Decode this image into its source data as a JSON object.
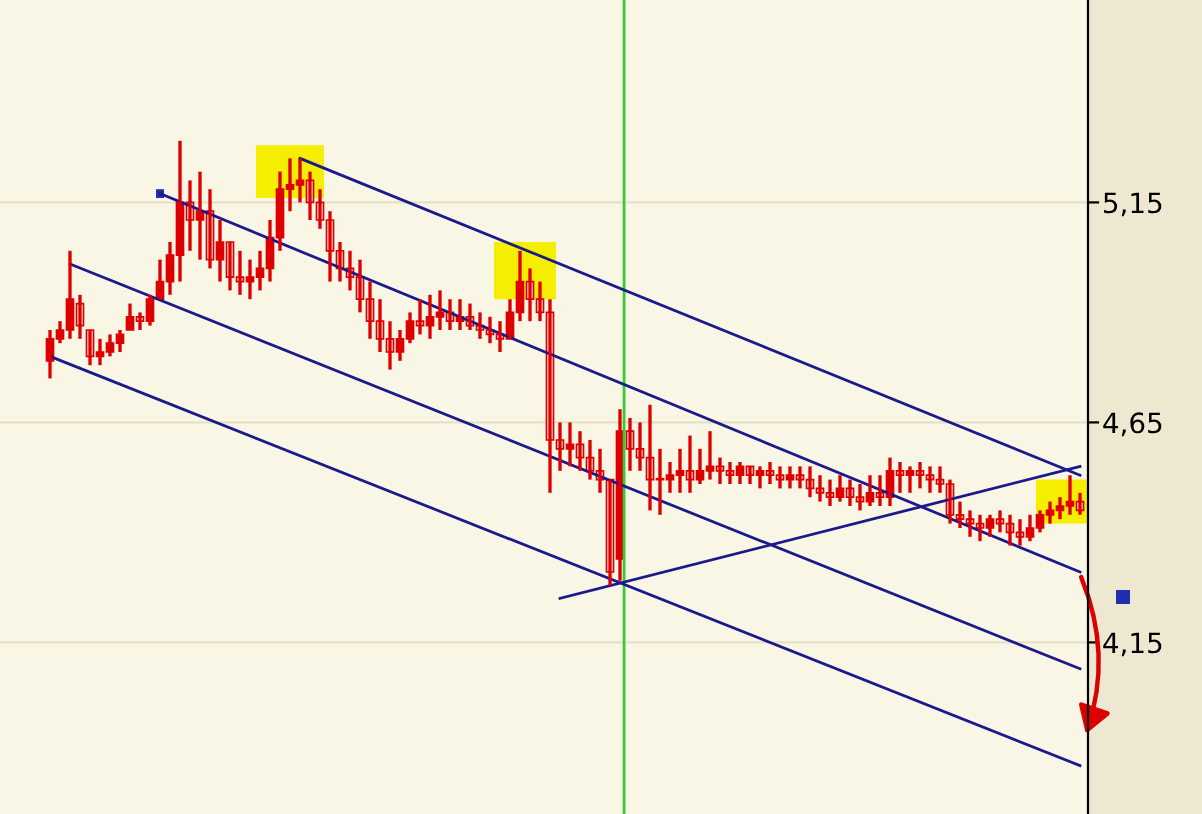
{
  "chart_data": {
    "type": "candlestick",
    "color": "#dd0000",
    "categories": [
      null,
      null,
      null,
      null,
      null,
      null,
      null,
      null,
      null,
      null,
      null,
      null,
      null,
      null,
      null,
      null,
      null,
      null,
      null,
      null,
      null,
      null,
      null,
      null,
      null,
      null,
      null,
      null,
      null,
      null,
      null,
      null,
      null,
      null,
      null,
      null,
      null,
      null,
      null,
      null,
      null,
      null,
      null,
      null,
      null,
      null,
      null,
      null,
      null,
      null,
      null,
      null,
      null,
      null,
      null,
      null,
      null,
      null,
      null,
      null,
      null,
      null,
      null,
      null,
      null,
      null,
      null,
      null,
      null,
      null,
      null,
      null,
      null,
      null,
      null,
      null,
      null,
      null,
      null,
      null,
      null,
      null,
      null,
      null,
      null,
      null,
      null,
      null,
      null,
      null,
      null,
      null,
      null,
      null,
      null,
      null,
      null,
      null,
      null,
      null,
      null,
      null,
      null,
      null
    ],
    "ohlc": [
      [
        4.79,
        4.86,
        4.75,
        4.84
      ],
      [
        4.84,
        4.88,
        4.83,
        4.86
      ],
      [
        4.86,
        5.04,
        4.84,
        4.93
      ],
      [
        4.92,
        4.94,
        4.84,
        4.87
      ],
      [
        4.86,
        4.86,
        4.78,
        4.8
      ],
      [
        4.8,
        4.84,
        4.78,
        4.81
      ],
      [
        4.81,
        4.85,
        4.8,
        4.83
      ],
      [
        4.83,
        4.86,
        4.81,
        4.85
      ],
      [
        4.86,
        4.92,
        4.86,
        4.89
      ],
      [
        4.89,
        4.9,
        4.86,
        4.88
      ],
      [
        4.88,
        4.94,
        4.87,
        4.93
      ],
      [
        4.93,
        5.02,
        4.93,
        4.97
      ],
      [
        4.97,
        5.06,
        4.94,
        5.03
      ],
      [
        5.03,
        5.29,
        4.97,
        5.15
      ],
      [
        5.15,
        5.2,
        5.04,
        5.11
      ],
      [
        5.11,
        5.22,
        5.02,
        5.13
      ],
      [
        5.13,
        5.18,
        5.0,
        5.02
      ],
      [
        5.02,
        5.11,
        4.97,
        5.06
      ],
      [
        5.06,
        5.06,
        4.95,
        4.98
      ],
      [
        4.98,
        5.04,
        4.94,
        4.97
      ],
      [
        4.97,
        5.02,
        4.93,
        4.98
      ],
      [
        4.98,
        5.04,
        4.95,
        5.0
      ],
      [
        5.0,
        5.11,
        4.97,
        5.07
      ],
      [
        5.07,
        5.22,
        5.04,
        5.18
      ],
      [
        5.18,
        5.25,
        5.13,
        5.19
      ],
      [
        5.19,
        5.25,
        5.15,
        5.2
      ],
      [
        5.2,
        5.22,
        5.11,
        5.15
      ],
      [
        5.15,
        5.18,
        5.09,
        5.11
      ],
      [
        5.11,
        5.13,
        4.97,
        5.04
      ],
      [
        5.04,
        5.06,
        4.97,
        5.0
      ],
      [
        5.0,
        5.04,
        4.95,
        4.98
      ],
      [
        4.98,
        5.02,
        4.9,
        4.93
      ],
      [
        4.93,
        4.97,
        4.84,
        4.88
      ],
      [
        4.88,
        4.93,
        4.81,
        4.84
      ],
      [
        4.84,
        4.88,
        4.77,
        4.81
      ],
      [
        4.81,
        4.86,
        4.79,
        4.84
      ],
      [
        4.84,
        4.9,
        4.83,
        4.88
      ],
      [
        4.88,
        4.93,
        4.85,
        4.87
      ],
      [
        4.87,
        4.94,
        4.84,
        4.89
      ],
      [
        4.89,
        4.95,
        4.86,
        4.9
      ],
      [
        4.9,
        4.93,
        4.86,
        4.88
      ],
      [
        4.88,
        4.93,
        4.86,
        4.89
      ],
      [
        4.89,
        4.92,
        4.86,
        4.87
      ],
      [
        4.87,
        4.9,
        4.84,
        4.86
      ],
      [
        4.86,
        4.89,
        4.83,
        4.85
      ],
      [
        4.85,
        4.88,
        4.81,
        4.84
      ],
      [
        4.84,
        4.93,
        4.84,
        4.9
      ],
      [
        4.9,
        5.04,
        4.88,
        4.97
      ],
      [
        4.97,
        5.0,
        4.88,
        4.93
      ],
      [
        4.93,
        4.97,
        4.88,
        4.9
      ],
      [
        4.9,
        4.93,
        4.49,
        4.61
      ],
      [
        4.61,
        4.65,
        4.54,
        4.59
      ],
      [
        4.59,
        4.65,
        4.55,
        4.6
      ],
      [
        4.6,
        4.63,
        4.54,
        4.57
      ],
      [
        4.57,
        4.61,
        4.52,
        4.54
      ],
      [
        4.54,
        4.59,
        4.49,
        4.52
      ],
      [
        4.52,
        4.52,
        4.28,
        4.31
      ],
      [
        4.34,
        4.68,
        4.29,
        4.63
      ],
      [
        4.63,
        4.66,
        4.54,
        4.59
      ],
      [
        4.59,
        4.65,
        4.54,
        4.57
      ],
      [
        4.57,
        4.69,
        4.45,
        4.52
      ],
      [
        4.52,
        4.59,
        4.44,
        4.52
      ],
      [
        4.52,
        4.56,
        4.49,
        4.53
      ],
      [
        4.53,
        4.59,
        4.49,
        4.54
      ],
      [
        4.54,
        4.62,
        4.49,
        4.52
      ],
      [
        4.52,
        4.59,
        4.51,
        4.54
      ],
      [
        4.54,
        4.63,
        4.52,
        4.55
      ],
      [
        4.55,
        4.57,
        4.51,
        4.54
      ],
      [
        4.54,
        4.56,
        4.51,
        4.53
      ],
      [
        4.53,
        4.56,
        4.51,
        4.55
      ],
      [
        4.55,
        4.55,
        4.51,
        4.53
      ],
      [
        4.53,
        4.55,
        4.5,
        4.54
      ],
      [
        4.54,
        4.56,
        4.51,
        4.53
      ],
      [
        4.53,
        4.55,
        4.5,
        4.52
      ],
      [
        4.52,
        4.55,
        4.5,
        4.53
      ],
      [
        4.53,
        4.55,
        4.5,
        4.52
      ],
      [
        4.52,
        4.55,
        4.48,
        4.5
      ],
      [
        4.5,
        4.53,
        4.47,
        4.49
      ],
      [
        4.49,
        4.52,
        4.46,
        4.48
      ],
      [
        4.48,
        4.53,
        4.47,
        4.5
      ],
      [
        4.5,
        4.52,
        4.46,
        4.48
      ],
      [
        4.48,
        4.51,
        4.45,
        4.47
      ],
      [
        4.47,
        4.53,
        4.46,
        4.49
      ],
      [
        4.49,
        4.53,
        4.46,
        4.48
      ],
      [
        4.48,
        4.57,
        4.46,
        4.54
      ],
      [
        4.54,
        4.56,
        4.49,
        4.53
      ],
      [
        4.53,
        4.55,
        4.49,
        4.54
      ],
      [
        4.54,
        4.56,
        4.5,
        4.53
      ],
      [
        4.53,
        4.55,
        4.49,
        4.52
      ],
      [
        4.52,
        4.55,
        4.49,
        4.51
      ],
      [
        4.51,
        4.52,
        4.42,
        4.44
      ],
      [
        4.44,
        4.47,
        4.41,
        4.43
      ],
      [
        4.43,
        4.45,
        4.39,
        4.42
      ],
      [
        4.42,
        4.44,
        4.38,
        4.41
      ],
      [
        4.41,
        4.44,
        4.39,
        4.43
      ],
      [
        4.43,
        4.45,
        4.4,
        4.42
      ],
      [
        4.42,
        4.44,
        4.37,
        4.4
      ],
      [
        4.4,
        4.43,
        4.37,
        4.39
      ],
      [
        4.39,
        4.44,
        4.38,
        4.41
      ],
      [
        4.41,
        4.45,
        4.4,
        4.44
      ],
      [
        4.44,
        4.47,
        4.42,
        4.45
      ],
      [
        4.45,
        4.48,
        4.43,
        4.46
      ],
      [
        4.46,
        4.53,
        4.44,
        4.47
      ],
      [
        4.47,
        4.49,
        4.44,
        4.45
      ]
    ],
    "series": [
      {
        "type": "line",
        "color": "#1a1a8c",
        "values": [
          null,
          null,
          null,
          null,
          null,
          null,
          null,
          null,
          null,
          null,
          null,
          null,
          null,
          null,
          null,
          null,
          null,
          null,
          null,
          null,
          null,
          null,
          null,
          null,
          null,
          5.25,
          null,
          null,
          null,
          null,
          null,
          null,
          null,
          null,
          null,
          null,
          null,
          null,
          null,
          null,
          null,
          null,
          null,
          null,
          null,
          null,
          null,
          null,
          null,
          null,
          null,
          null,
          null,
          null,
          null,
          null,
          null,
          null,
          null,
          null,
          null,
          null,
          null,
          null,
          null,
          null,
          null,
          null,
          null,
          null,
          null,
          null,
          null,
          null,
          null,
          null,
          null,
          null,
          null,
          null,
          null,
          null,
          null,
          null,
          null,
          null,
          null,
          null,
          null,
          null,
          null,
          null,
          null,
          null,
          null,
          null,
          null,
          null,
          null,
          null,
          null,
          null,
          null,
          4.53
        ]
      },
      {
        "type": "line",
        "color": "#1a1a8c",
        "values": [
          null,
          null,
          null,
          null,
          null,
          null,
          null,
          null,
          null,
          null,
          null,
          5.17,
          null,
          null,
          null,
          null,
          null,
          null,
          null,
          null,
          null,
          null,
          null,
          null,
          null,
          null,
          null,
          null,
          null,
          null,
          null,
          null,
          null,
          null,
          null,
          null,
          null,
          null,
          null,
          null,
          null,
          null,
          null,
          null,
          null,
          null,
          null,
          null,
          null,
          null,
          null,
          null,
          null,
          null,
          null,
          null,
          null,
          null,
          null,
          null,
          null,
          null,
          null,
          null,
          null,
          null,
          null,
          null,
          null,
          null,
          null,
          null,
          null,
          null,
          null,
          null,
          null,
          null,
          null,
          null,
          null,
          null,
          null,
          null,
          null,
          null,
          null,
          null,
          null,
          null,
          null,
          null,
          null,
          null,
          null,
          null,
          null,
          null,
          null,
          null,
          null,
          null,
          null,
          4.31
        ]
      },
      {
        "type": "line",
        "color": "#1a1a8c",
        "values": [
          null,
          null,
          5.01,
          null,
          null,
          null,
          null,
          null,
          null,
          null,
          null,
          null,
          null,
          null,
          null,
          null,
          null,
          null,
          null,
          null,
          null,
          null,
          null,
          null,
          null,
          null,
          null,
          null,
          null,
          null,
          null,
          null,
          null,
          null,
          null,
          null,
          null,
          null,
          null,
          null,
          null,
          null,
          null,
          null,
          null,
          null,
          null,
          null,
          null,
          null,
          null,
          null,
          null,
          null,
          null,
          null,
          null,
          null,
          null,
          null,
          null,
          null,
          null,
          null,
          null,
          null,
          null,
          null,
          null,
          null,
          null,
          null,
          null,
          null,
          null,
          null,
          null,
          null,
          null,
          null,
          null,
          null,
          null,
          null,
          null,
          null,
          null,
          null,
          null,
          null,
          null,
          null,
          null,
          null,
          null,
          null,
          null,
          null,
          null,
          null,
          null,
          null,
          null,
          4.09
        ]
      },
      {
        "type": "line",
        "color": "#1a1a8c",
        "values": [
          4.8,
          null,
          null,
          null,
          null,
          null,
          null,
          null,
          null,
          null,
          null,
          null,
          null,
          null,
          null,
          null,
          null,
          null,
          null,
          null,
          null,
          null,
          null,
          null,
          null,
          null,
          null,
          null,
          null,
          null,
          null,
          null,
          null,
          null,
          null,
          null,
          null,
          null,
          null,
          null,
          null,
          null,
          null,
          null,
          null,
          null,
          null,
          null,
          null,
          null,
          null,
          null,
          null,
          null,
          null,
          null,
          null,
          null,
          null,
          null,
          null,
          null,
          null,
          null,
          null,
          null,
          null,
          null,
          null,
          null,
          null,
          null,
          null,
          null,
          null,
          null,
          null,
          null,
          null,
          null,
          null,
          null,
          null,
          null,
          null,
          null,
          null,
          null,
          null,
          null,
          null,
          null,
          null,
          null,
          null,
          null,
          null,
          null,
          null,
          null,
          null,
          null,
          null,
          3.87
        ]
      },
      {
        "type": "line",
        "color": "#1a1a8c",
        "values": [
          null,
          null,
          null,
          null,
          null,
          null,
          null,
          null,
          null,
          null,
          null,
          null,
          null,
          null,
          null,
          null,
          null,
          null,
          null,
          null,
          null,
          null,
          null,
          null,
          null,
          null,
          null,
          null,
          null,
          null,
          null,
          null,
          null,
          null,
          null,
          null,
          null,
          null,
          null,
          null,
          null,
          null,
          null,
          null,
          null,
          null,
          null,
          null,
          null,
          null,
          null,
          4.25,
          null,
          null,
          null,
          null,
          null,
          null,
          null,
          null,
          null,
          null,
          null,
          null,
          null,
          null,
          null,
          null,
          null,
          null,
          null,
          null,
          null,
          null,
          null,
          null,
          null,
          null,
          null,
          null,
          null,
          null,
          null,
          null,
          null,
          null,
          null,
          null,
          null,
          null,
          null,
          null,
          null,
          null,
          null,
          null,
          null,
          null,
          null,
          null,
          null,
          null,
          null,
          4.55
        ]
      }
    ],
    "ylim": [
      3.76,
      5.61
    ],
    "yticks": [
      {
        "value": 4.15,
        "label": "4,15"
      },
      {
        "value": 4.65,
        "label": "4,65"
      },
      {
        "value": 5.15,
        "label": "5,15"
      }
    ],
    "tick_labels": "y",
    "grid": "y"
  }
}
